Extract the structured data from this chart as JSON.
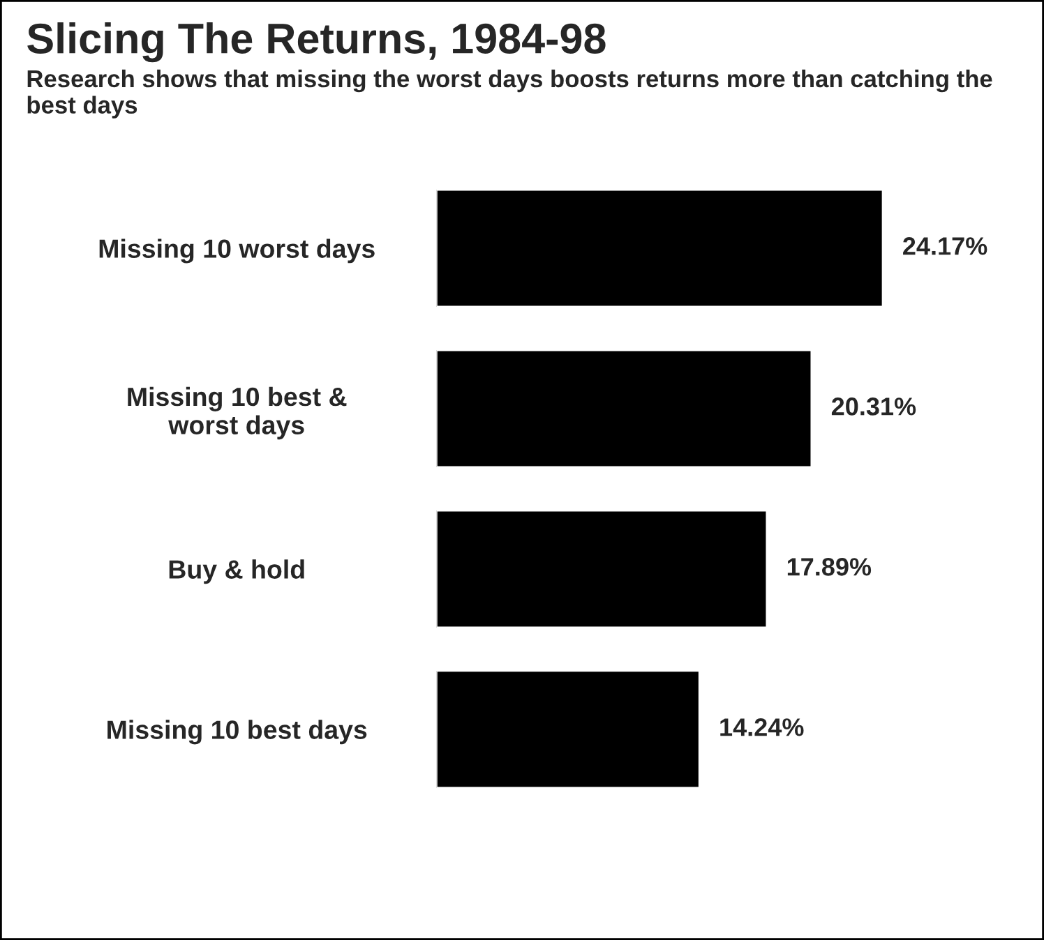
{
  "chart_data": {
    "type": "bar",
    "orientation": "horizontal",
    "title": "Slicing The Returns, 1984-98",
    "subtitle": "Research shows that missing the worst days boosts returns more than catching the best days",
    "categories": [
      "Missing 10 worst days",
      "Missing 10 best &\nworst days",
      "Buy & hold",
      "Missing 10 best days"
    ],
    "values": [
      24.17,
      20.31,
      17.89,
      14.24
    ],
    "value_labels": [
      "24.17%",
      "20.31%",
      "17.89%",
      "14.24%"
    ],
    "color": "#000000",
    "tick_labels": "y",
    "grid": false,
    "legend": false
  }
}
